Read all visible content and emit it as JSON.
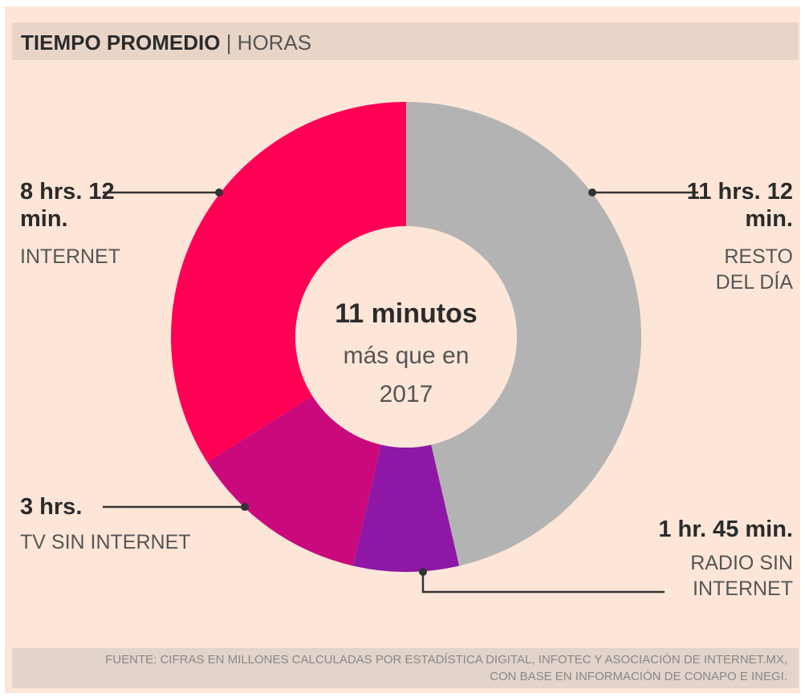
{
  "chart_data": {
    "type": "donut",
    "title": "TIEMPO PROMEDIO",
    "subtitle": "HORAS",
    "categories": [
      "RESTO DEL DÍA",
      "RADIO SIN INTERNET",
      "TV SIN INTERNET",
      "INTERNET"
    ],
    "values": [
      11.2,
      1.75,
      3,
      8.2
    ],
    "value_labels": [
      "11 hrs. 12 min.",
      "1 hr. 45 min.",
      "3 hrs.",
      "8 hrs. 12 min."
    ],
    "colors": [
      "#b3b3b3",
      "#8e17a6",
      "#c9097c",
      "#ff0055"
    ],
    "annotation": {
      "headline": "11 minutos",
      "text": "más que en 2017"
    },
    "source": "FUENTE: CIFRAS EN MILLONES CALCULADAS POR ESTADÍSTICA DIGITAL, INFOTEC Y ASOCIACIÓN DE INTERNET.MX, CON BASE EN INFORMACIÓN DE CONAPO E INEGI."
  }
}
